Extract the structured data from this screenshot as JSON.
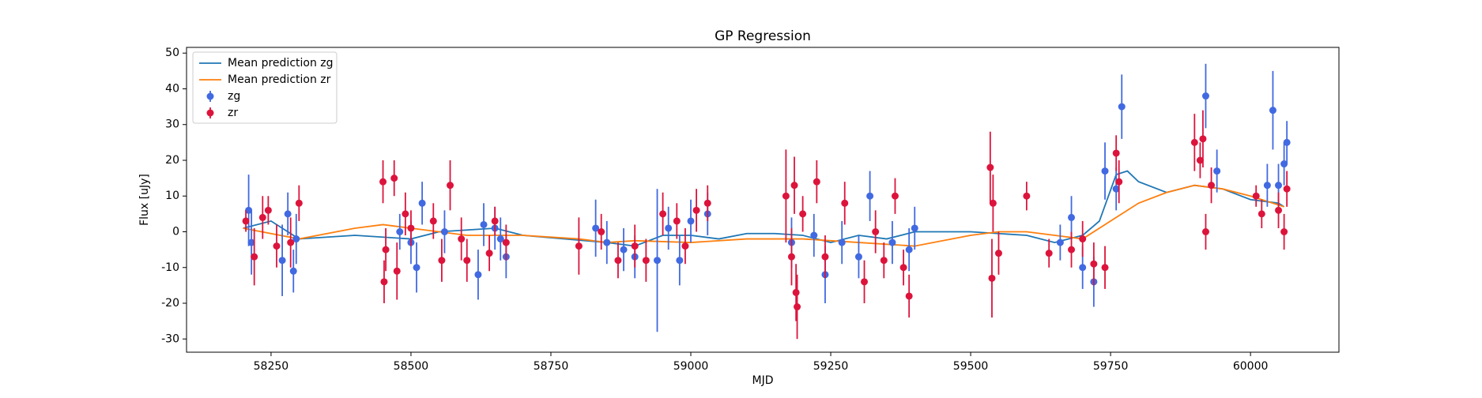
{
  "chart_data": {
    "type": "scatter",
    "title": "GP Regression",
    "x_label": "MJD",
    "y_label": "Flux [uJy]",
    "xlim": [
      58099,
      60158
    ],
    "ylim": [
      -33.7,
      51.6
    ],
    "xticks": [
      58250,
      58500,
      58750,
      59000,
      59250,
      59500,
      59750,
      60000
    ],
    "yticks": [
      -30,
      -20,
      -10,
      0,
      10,
      20,
      30,
      40,
      50
    ],
    "legend": "upper left",
    "series": [
      {
        "name": "Mean prediction zg",
        "type": "line",
        "color": "#1f77b4",
        "x": [
          58200,
          58250,
          58300,
          58400,
          58500,
          58550,
          58650,
          58700,
          58850,
          58900,
          58950,
          59000,
          59050,
          59100,
          59150,
          59200,
          59250,
          59300,
          59350,
          59400,
          59500,
          59600,
          59650,
          59700,
          59730,
          59760,
          59780,
          59800,
          59850,
          59900,
          59950,
          60000,
          60050,
          60060
        ],
        "values": [
          1,
          3,
          -2,
          -1,
          -2,
          0,
          1,
          -1,
          -3,
          -4,
          -1,
          -1,
          -2,
          -0.5,
          -0.5,
          -1,
          -3,
          -1,
          -2,
          0,
          0,
          -1,
          -3,
          -1,
          3,
          16,
          17,
          14,
          11,
          13,
          12,
          9,
          8,
          7
        ]
      },
      {
        "name": "Mean prediction zr",
        "type": "line",
        "color": "#ff7f0e",
        "x": [
          58200,
          58300,
          58400,
          58450,
          58500,
          58600,
          58700,
          58800,
          58850,
          58900,
          59000,
          59100,
          59200,
          59300,
          59400,
          59500,
          59550,
          59600,
          59650,
          59700,
          59750,
          59800,
          59850,
          59900,
          59950,
          60000,
          60060
        ],
        "values": [
          1,
          -2,
          1,
          2,
          1,
          -1,
          -1,
          -2,
          -3,
          -2.5,
          -3,
          -2,
          -2,
          -3,
          -4,
          -1,
          0,
          0,
          -1,
          -2,
          3,
          8,
          11,
          13,
          12,
          10,
          7
        ]
      },
      {
        "name": "zg",
        "type": "errorbar",
        "color": "#4169e1",
        "x": [
          58210,
          58215,
          58270,
          58280,
          58290,
          58295,
          58480,
          58500,
          58510,
          58520,
          58560,
          58620,
          58630,
          58650,
          58660,
          58670,
          58830,
          58850,
          58880,
          58900,
          58940,
          58960,
          58980,
          59000,
          59030,
          59180,
          59220,
          59240,
          59270,
          59300,
          59320,
          59360,
          59390,
          59400,
          59660,
          59680,
          59700,
          59720,
          59740,
          59760,
          59770,
          59920,
          59940,
          60030,
          60040,
          60050,
          60060,
          60065
        ],
        "values": [
          6,
          -3,
          -8,
          5,
          -11,
          -2,
          0,
          -3,
          -10,
          8,
          0,
          -12,
          2,
          1,
          -2,
          -7,
          1,
          -3,
          -5,
          -7,
          -8,
          1,
          -8,
          3,
          5,
          -3,
          -1,
          -12,
          -3,
          -7,
          10,
          -3,
          -5,
          1,
          -3,
          4,
          -10,
          -14,
          17,
          12,
          35,
          38,
          17,
          13,
          34,
          13,
          19,
          25
        ],
        "errors": [
          10,
          9,
          10,
          6,
          6,
          7,
          5,
          6,
          7,
          6,
          6,
          7,
          6,
          6,
          6,
          6,
          8,
          6,
          6,
          6,
          20,
          6,
          7,
          6,
          6,
          7,
          6,
          8,
          6,
          6,
          7,
          6,
          6,
          6,
          5,
          6,
          6,
          7,
          8,
          6,
          9,
          9,
          6,
          6,
          11,
          6,
          6,
          6
        ]
      },
      {
        "name": "zr",
        "type": "errorbar",
        "color": "#dc143c",
        "x": [
          58205,
          58220,
          58235,
          58245,
          58260,
          58285,
          58300,
          58450,
          58452,
          58455,
          58470,
          58475,
          58490,
          58500,
          58540,
          58555,
          58570,
          58590,
          58600,
          58640,
          58650,
          58670,
          58800,
          58840,
          58870,
          58900,
          58920,
          58950,
          58975,
          58990,
          59010,
          59030,
          59170,
          59180,
          59185,
          59188,
          59190,
          59200,
          59225,
          59240,
          59275,
          59310,
          59330,
          59345,
          59365,
          59380,
          59390,
          59535,
          59538,
          59540,
          59550,
          59600,
          59640,
          59680,
          59700,
          59720,
          59740,
          59760,
          59765,
          59900,
          59910,
          59915,
          59920,
          59930,
          60010,
          60020,
          60050,
          60060,
          60065
        ],
        "values": [
          3,
          -7,
          4,
          6,
          -4,
          -3,
          8,
          14,
          -14,
          -5,
          15,
          -11,
          5,
          1,
          3,
          -8,
          13,
          -2,
          -8,
          -6,
          3,
          -3,
          -4,
          0,
          -8,
          -4,
          -8,
          5,
          3,
          -4,
          6,
          8,
          10,
          -7,
          13,
          -17,
          -21,
          5,
          14,
          -7,
          8,
          -14,
          0,
          -8,
          10,
          -10,
          -18,
          18,
          -13,
          8,
          -6,
          10,
          -6,
          -5,
          -2,
          -9,
          -10,
          22,
          14,
          25,
          20,
          26,
          0,
          13,
          10,
          5,
          6,
          0,
          12
        ],
        "errors": [
          3,
          8,
          6,
          4,
          6,
          7,
          5,
          6,
          6,
          6,
          5,
          8,
          6,
          5,
          5,
          6,
          7,
          6,
          6,
          5,
          4,
          5,
          8,
          5,
          5,
          6,
          6,
          6,
          5,
          5,
          6,
          5,
          13,
          8,
          8,
          8,
          9,
          5,
          6,
          6,
          6,
          6,
          6,
          5,
          5,
          5,
          6,
          10,
          11,
          8,
          6,
          4,
          4,
          5,
          5,
          6,
          6,
          5,
          6,
          8,
          5,
          8,
          5,
          5,
          3,
          4,
          5,
          5,
          5
        ]
      }
    ]
  }
}
